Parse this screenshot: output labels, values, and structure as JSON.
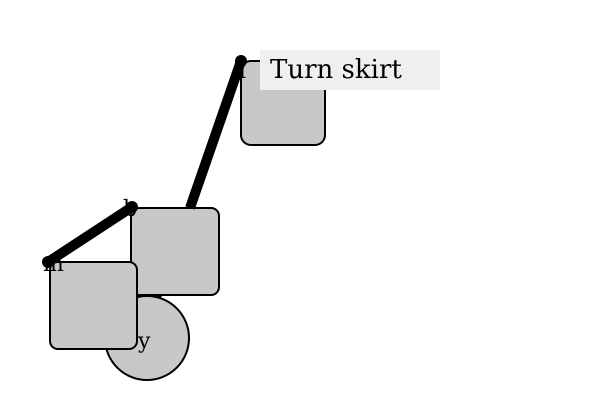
{
  "diagram": {
    "labels": {
      "top": "I",
      "middle": "b",
      "left": "m",
      "circle": "y"
    },
    "tooltip": {
      "text": "Turn skirt",
      "background": "#efefef"
    },
    "colors": {
      "node_fill": "#c8c8c8",
      "stroke": "#000000"
    }
  }
}
